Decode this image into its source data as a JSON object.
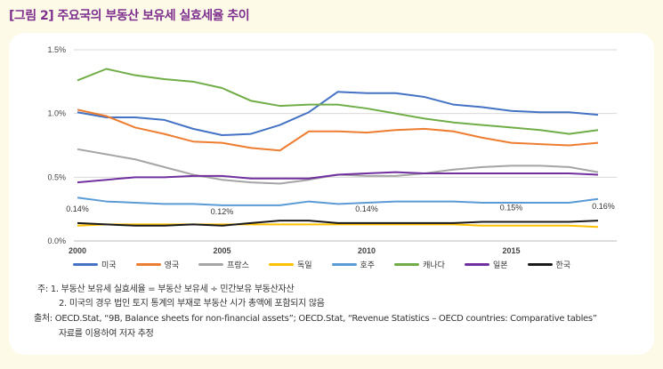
{
  "title": "[그림 2] 주요국의 부동산 보유세 실효세율 추이",
  "chart_data": {
    "type": "line",
    "title": "",
    "xlabel": "",
    "ylabel": "",
    "x": [
      2000,
      2001,
      2002,
      2003,
      2004,
      2005,
      2006,
      2007,
      2008,
      2009,
      2010,
      2011,
      2012,
      2013,
      2014,
      2015,
      2016,
      2017,
      2018
    ],
    "x_ticks": [
      "2000",
      "2005",
      "2010",
      "2015"
    ],
    "x_tick_values": [
      2000,
      2005,
      2010,
      2015
    ],
    "y_ticks": [
      "0.0%",
      "0.5%",
      "1.0%",
      "1.5%"
    ],
    "y_tick_values": [
      0,
      0.5,
      1.0,
      1.5
    ],
    "ylim": [
      0,
      1.5
    ],
    "xlim": [
      2000,
      2018.5
    ],
    "grid": "horizontal",
    "legend_position": "bottom",
    "series": [
      {
        "name": "미국",
        "color": "#4472c4",
        "values": [
          1.01,
          0.97,
          0.97,
          0.95,
          0.88,
          0.83,
          0.84,
          0.91,
          1.01,
          1.17,
          1.16,
          1.16,
          1.13,
          1.07,
          1.05,
          1.02,
          1.01,
          1.01,
          0.99
        ]
      },
      {
        "name": "영국",
        "color": "#ed7d31",
        "values": [
          1.03,
          0.98,
          0.89,
          0.84,
          0.78,
          0.77,
          0.73,
          0.71,
          0.86,
          0.86,
          0.85,
          0.87,
          0.88,
          0.86,
          0.81,
          0.77,
          0.76,
          0.75,
          0.77
        ]
      },
      {
        "name": "프랑스",
        "color": "#a5a5a5",
        "values": [
          0.72,
          0.68,
          0.64,
          0.58,
          0.52,
          0.48,
          0.46,
          0.45,
          0.48,
          0.52,
          0.51,
          0.51,
          0.53,
          0.56,
          0.58,
          0.59,
          0.59,
          0.58,
          0.54
        ]
      },
      {
        "name": "독일",
        "color": "#ffc000",
        "values": [
          0.12,
          0.13,
          0.13,
          0.13,
          0.13,
          0.13,
          0.13,
          0.13,
          0.13,
          0.13,
          0.13,
          0.13,
          0.13,
          0.13,
          0.12,
          0.12,
          0.12,
          0.12,
          0.11
        ]
      },
      {
        "name": "호주",
        "color": "#5b9bd5",
        "values": [
          0.34,
          0.31,
          0.3,
          0.29,
          0.29,
          0.28,
          0.28,
          0.28,
          0.31,
          0.29,
          0.3,
          0.31,
          0.31,
          0.31,
          0.3,
          0.3,
          0.3,
          0.3,
          0.33
        ]
      },
      {
        "name": "캐나다",
        "color": "#70ad47",
        "values": [
          1.26,
          1.35,
          1.3,
          1.27,
          1.25,
          1.2,
          1.1,
          1.06,
          1.07,
          1.07,
          1.04,
          1.0,
          0.96,
          0.93,
          0.91,
          0.89,
          0.87,
          0.84,
          0.87
        ]
      },
      {
        "name": "일본",
        "color": "#7030a0",
        "values": [
          0.46,
          0.48,
          0.5,
          0.5,
          0.51,
          0.51,
          0.49,
          0.49,
          0.49,
          0.52,
          0.53,
          0.54,
          0.53,
          0.53,
          0.53,
          0.53,
          0.53,
          0.53,
          0.52
        ]
      },
      {
        "name": "한국",
        "color": "#1a1a1a",
        "values": [
          0.14,
          0.13,
          0.12,
          0.12,
          0.13,
          0.12,
          0.14,
          0.16,
          0.16,
          0.14,
          0.14,
          0.14,
          0.14,
          0.14,
          0.15,
          0.15,
          0.15,
          0.15,
          0.16
        ]
      }
    ],
    "annotations": [
      {
        "x": 2000,
        "text": "0.14%"
      },
      {
        "x": 2005,
        "text": "0.12%"
      },
      {
        "x": 2010,
        "text": "0.14%"
      },
      {
        "x": 2015,
        "text": "0.15%"
      },
      {
        "x": 2018,
        "text": "0.16%"
      }
    ]
  },
  "notes": {
    "note1": "주: 1. 부동산 보유세 실효세율 = 부동산 보유세 ÷ 민간보유 부동산자산",
    "note2": "2. 미국의 경우 법인 토지 통계의 부재로 부동산 시가 총액에 포함되지 않음",
    "source1": "출처: OECD.Stat, “9B, Balance sheets for non-financial assets”; OECD.Stat, “Revenue Statistics – OECD countries: Comparative tables”",
    "source2": "자료를 이용하여 저자 추정"
  }
}
